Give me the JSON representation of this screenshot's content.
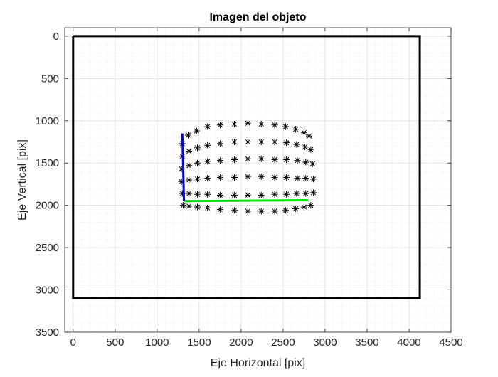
{
  "chart_data": {
    "type": "scatter",
    "title": "Imagen del objeto",
    "xlabel": "Eje Horizontal [pix]",
    "ylabel": "Eje Vertical [pix]",
    "xlim": [
      -100,
      4500
    ],
    "ylim": [
      -100,
      3500
    ],
    "y_reversed": true,
    "xticks": [
      0,
      500,
      1000,
      1500,
      2000,
      2500,
      3000,
      3500,
      4000,
      4500
    ],
    "yticks": [
      0,
      500,
      1000,
      1500,
      2000,
      2500,
      3000,
      3500
    ],
    "grid": true,
    "minor_grid": true,
    "frame": {
      "color": "#000000",
      "x": [
        0,
        4128,
        4128,
        0,
        0
      ],
      "y": [
        0,
        0,
        3096,
        3096,
        0
      ]
    },
    "x_axis_line": {
      "color": "#00e600",
      "x": [
        1320,
        2800
      ],
      "y": [
        1950,
        1940
      ]
    },
    "y_axis_line": {
      "color": "#0000e6",
      "x": [
        1300,
        1320
      ],
      "y": [
        1150,
        1950
      ]
    },
    "points": {
      "marker": "*",
      "color": "#000000",
      "rows": [
        {
          "x": [
            1300,
            1370,
            1470,
            1600,
            1750,
            1920,
            2080,
            2240,
            2400,
            2530,
            2650,
            2750,
            2810
          ],
          "y": [
            1270,
            1170,
            1120,
            1070,
            1050,
            1040,
            1030,
            1040,
            1050,
            1070,
            1100,
            1140,
            1180
          ]
        },
        {
          "x": [
            1300,
            1380,
            1480,
            1600,
            1750,
            1920,
            2080,
            2240,
            2400,
            2540,
            2660,
            2760,
            2830
          ],
          "y": [
            1420,
            1360,
            1320,
            1290,
            1270,
            1250,
            1250,
            1250,
            1250,
            1260,
            1280,
            1310,
            1340
          ]
        },
        {
          "x": [
            1290,
            1380,
            1480,
            1600,
            1750,
            1920,
            2080,
            2240,
            2400,
            2540,
            2670,
            2770,
            2850
          ],
          "y": [
            1570,
            1530,
            1500,
            1480,
            1470,
            1460,
            1450,
            1450,
            1460,
            1460,
            1470,
            1490,
            1510
          ]
        },
        {
          "x": [
            1290,
            1380,
            1480,
            1600,
            1750,
            1920,
            2080,
            2240,
            2400,
            2540,
            2670,
            2770,
            2860
          ],
          "y": [
            1720,
            1700,
            1690,
            1680,
            1670,
            1670,
            1660,
            1660,
            1670,
            1670,
            1680,
            1680,
            1690
          ]
        },
        {
          "x": [
            1300,
            1380,
            1480,
            1600,
            1750,
            1920,
            2080,
            2240,
            2400,
            2540,
            2660,
            2770,
            2860
          ],
          "y": [
            1860,
            1860,
            1870,
            1870,
            1880,
            1880,
            1880,
            1880,
            1870,
            1870,
            1860,
            1860,
            1850
          ]
        },
        {
          "x": [
            1310,
            1380,
            1480,
            1600,
            1750,
            1920,
            2080,
            2240,
            2400,
            2530,
            2650,
            2750,
            2830
          ],
          "y": [
            2000,
            2010,
            2020,
            2030,
            2050,
            2060,
            2070,
            2070,
            2070,
            2060,
            2040,
            2020,
            2000
          ]
        }
      ]
    }
  }
}
